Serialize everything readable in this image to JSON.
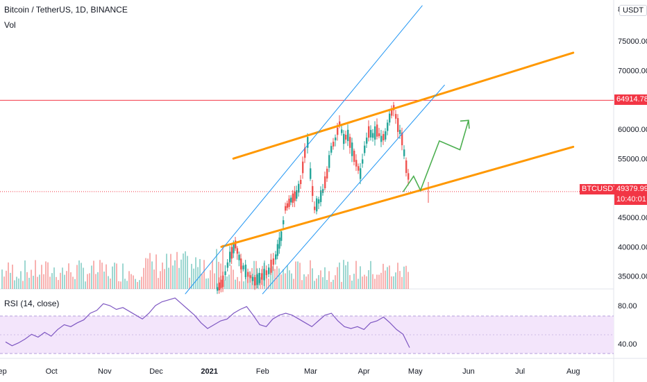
{
  "header": {
    "symbol_title": "Bitcoin / TetherUS, 1D, BINANCE",
    "volume_label": "Vol",
    "rsi_label": "RSI (14, close)",
    "currency_button": "USDT",
    "top_axis_partial": "8"
  },
  "price_axis": {
    "ticks": [
      {
        "value": 75000,
        "label": "75000.00"
      },
      {
        "value": 70000,
        "label": "70000.00"
      },
      {
        "value": 60000,
        "label": "60000.00"
      },
      {
        "value": 55000,
        "label": "55000.00"
      },
      {
        "value": 50000,
        "label": "50000.00"
      },
      {
        "value": 45000,
        "label": "45000.00"
      },
      {
        "value": 40000,
        "label": "40000.00"
      },
      {
        "value": 35000,
        "label": "35000.00"
      }
    ]
  },
  "rsi_axis": {
    "ticks": [
      {
        "value": 80,
        "label": "80.00"
      },
      {
        "value": 40,
        "label": "40.00"
      }
    ],
    "band_upper": 70,
    "band_lower": 30
  },
  "time_axis": {
    "labels": [
      {
        "date": "2020-09-01",
        "label": "Sep",
        "bold": false
      },
      {
        "date": "2020-10-01",
        "label": "Oct",
        "bold": false
      },
      {
        "date": "2020-11-01",
        "label": "Nov",
        "bold": false
      },
      {
        "date": "2020-12-01",
        "label": "Dec",
        "bold": false
      },
      {
        "date": "2021-01-01",
        "label": "2021",
        "bold": true
      },
      {
        "date": "2021-02-01",
        "label": "Feb",
        "bold": false
      },
      {
        "date": "2021-03-01",
        "label": "Mar",
        "bold": false
      },
      {
        "date": "2021-04-01",
        "label": "Apr",
        "bold": false
      },
      {
        "date": "2021-05-01",
        "label": "May",
        "bold": false
      },
      {
        "date": "2021-06-01",
        "label": "Jun",
        "bold": false
      },
      {
        "date": "2021-07-01",
        "label": "Jul",
        "bold": false
      },
      {
        "date": "2021-08-01",
        "label": "Aug",
        "bold": false
      }
    ]
  },
  "price_tags": {
    "level_value": "64914.78",
    "last_price": "49379.99",
    "countdown": "10:40:01",
    "symbol": "BTCUSDT"
  },
  "colors": {
    "up": "#26a69a",
    "down": "#ef5350",
    "channel": "#ff9800",
    "blue_channel": "#2196f3",
    "projection": "#4caf50",
    "level": "#f23645",
    "rsi_line": "#7e57c2",
    "rsi_band": "#f3e5fb"
  },
  "chart_data": {
    "type": "candlestick",
    "title": "Bitcoin / TetherUS, 1D, BINANCE",
    "x_range": [
      "2020-09-01",
      "2021-08-10"
    ],
    "y_range": [
      32000,
      81000
    ],
    "horizontal_level": 64914.78,
    "last_price": 49379.99,
    "candles_monthly_approx": [
      {
        "date": "2021-01-01",
        "open": 29000,
        "high": 41900,
        "low": 28800,
        "close": 33100
      },
      {
        "date": "2021-02-01",
        "open": 33100,
        "high": 58300,
        "low": 32300,
        "close": 45100
      },
      {
        "date": "2021-03-01",
        "open": 45100,
        "high": 61800,
        "low": 45000,
        "close": 58800
      },
      {
        "date": "2021-04-01",
        "open": 58800,
        "high": 64900,
        "low": 47000,
        "close": 49380
      }
    ],
    "drawings": {
      "orange_channel_upper": [
        [
          "2021-01-15",
          55000
        ],
        [
          "2021-08-01",
          73000
        ]
      ],
      "orange_channel_lower": [
        [
          "2021-01-08",
          40000
        ],
        [
          "2021-08-01",
          57000
        ]
      ],
      "blue_channel_line_1": [
        [
          "2020-12-18",
          32000
        ],
        [
          "2021-05-05",
          81000
        ]
      ],
      "blue_channel_line_2": [
        [
          "2021-02-01",
          32000
        ],
        [
          "2021-05-18",
          67500
        ]
      ],
      "green_projection": [
        [
          "2021-04-24",
          49400
        ],
        [
          "2021-04-30",
          52000
        ],
        [
          "2021-05-04",
          49600
        ],
        [
          "2021-05-15",
          58000
        ],
        [
          "2021-05-27",
          56500
        ],
        [
          "2021-06-01",
          61500
        ]
      ]
    },
    "rsi": {
      "period": 14,
      "values_approx": [
        42,
        38,
        41,
        45,
        50,
        47,
        52,
        48,
        55,
        60,
        58,
        62,
        65,
        72,
        75,
        82,
        80,
        76,
        78,
        74,
        70,
        66,
        72,
        80,
        84,
        86,
        88,
        82,
        76,
        70,
        62,
        56,
        60,
        64,
        66,
        72,
        76,
        79,
        70,
        60,
        58,
        66,
        70,
        72,
        70,
        66,
        62,
        58,
        64,
        70,
        72,
        64,
        58,
        56,
        58,
        55,
        62,
        64,
        68,
        62,
        55,
        50,
        36
      ]
    }
  }
}
